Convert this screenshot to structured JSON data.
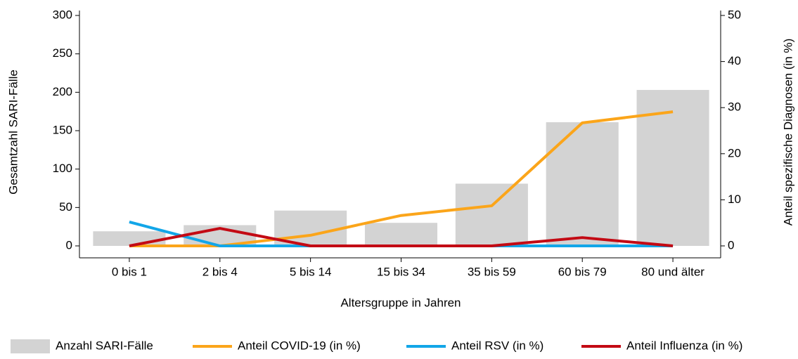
{
  "chart_data": {
    "type": "combo",
    "x_label": "Altersgruppe in Jahren",
    "y_label": "Gesamtzahl SARI-Fälle",
    "y2_label": "Anteil spezifische Diagnosen (in %)",
    "categories": [
      "0 bis 1",
      "2 bis 4",
      "5 bis 14",
      "15 bis 34",
      "35 bis 59",
      "60 bis 79",
      "80 und älter"
    ],
    "ylim": [
      0,
      300
    ],
    "yticks": [
      0,
      50,
      100,
      150,
      200,
      250,
      300
    ],
    "y2lim": [
      0,
      50
    ],
    "y2ticks": [
      0,
      10,
      20,
      30,
      40,
      50
    ],
    "series": [
      {
        "name": "Anzahl SARI-Fälle",
        "type": "bar",
        "color": "#d3d3d3",
        "values": [
          19,
          27,
          46,
          30,
          81,
          161,
          203
        ]
      },
      {
        "name": "Anteil COVID-19 (in %)",
        "type": "line",
        "axis": "y2",
        "color": "#fba51a",
        "values": [
          0,
          0,
          2.3,
          6.6,
          8.7,
          26.7,
          29.1
        ]
      },
      {
        "name": "Anteil RSV (in %)",
        "type": "line",
        "axis": "y2",
        "color": "#12a6e8",
        "values": [
          5.2,
          0,
          0,
          0,
          0,
          0,
          0
        ]
      },
      {
        "name": "Anteil Influenza (in %)",
        "type": "line",
        "axis": "y2",
        "color": "#c30a14",
        "values": [
          0,
          3.8,
          0,
          0,
          0,
          1.8,
          0
        ]
      }
    ]
  }
}
